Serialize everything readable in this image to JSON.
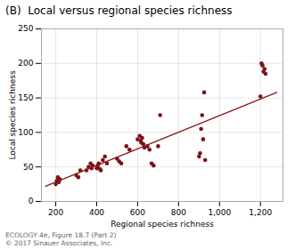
{
  "chart_data": {
    "type": "scatter",
    "title": "(B)  Local versus regional species richness",
    "x_label": "Regional species richness",
    "y_label": "Local species richness",
    "annotations": [
      "ECOLOGY 4e, Figure 18.7 (Part 2)",
      "© 2017 Sinauer Associates, Inc."
    ],
    "xlim": [
      130,
      1310
    ],
    "ylim": [
      0,
      250
    ],
    "xticks": [
      200,
      400,
      600,
      800,
      {
        "value": 1000,
        "label": "1,000"
      },
      {
        "value": 1200,
        "label": "1,200"
      }
    ],
    "yticks": [
      0,
      50,
      100,
      150,
      200,
      250
    ],
    "grid": true,
    "series": [
      {
        "type": "scatter",
        "color": "#7a1318",
        "x": [
          200,
          205,
          210,
          215,
          220,
          300,
          310,
          320,
          350,
          360,
          370,
          375,
          380,
          400,
          405,
          410,
          415,
          420,
          430,
          440,
          450,
          500,
          510,
          520,
          545,
          560,
          600,
          610,
          615,
          618,
          622,
          628,
          633,
          648,
          658,
          668,
          678,
          700,
          710,
          900,
          905,
          910,
          915,
          920,
          925,
          930,
          1200,
          1205,
          1210,
          1215,
          1220,
          1225
        ],
        "values": [
          25,
          30,
          35,
          28,
          32,
          38,
          35,
          45,
          45,
          50,
          55,
          48,
          52,
          48,
          52,
          55,
          47,
          45,
          60,
          65,
          55,
          62,
          58,
          55,
          80,
          75,
          90,
          95,
          88,
          85,
          92,
          83,
          78,
          80,
          75,
          55,
          52,
          80,
          125,
          65,
          70,
          105,
          125,
          90,
          158,
          60,
          152,
          200,
          197,
          188,
          192,
          185
        ]
      },
      {
        "type": "line",
        "color": "#8b1a1a",
        "x": [
          150,
          1280
        ],
        "values": [
          22,
          158
        ]
      }
    ]
  }
}
